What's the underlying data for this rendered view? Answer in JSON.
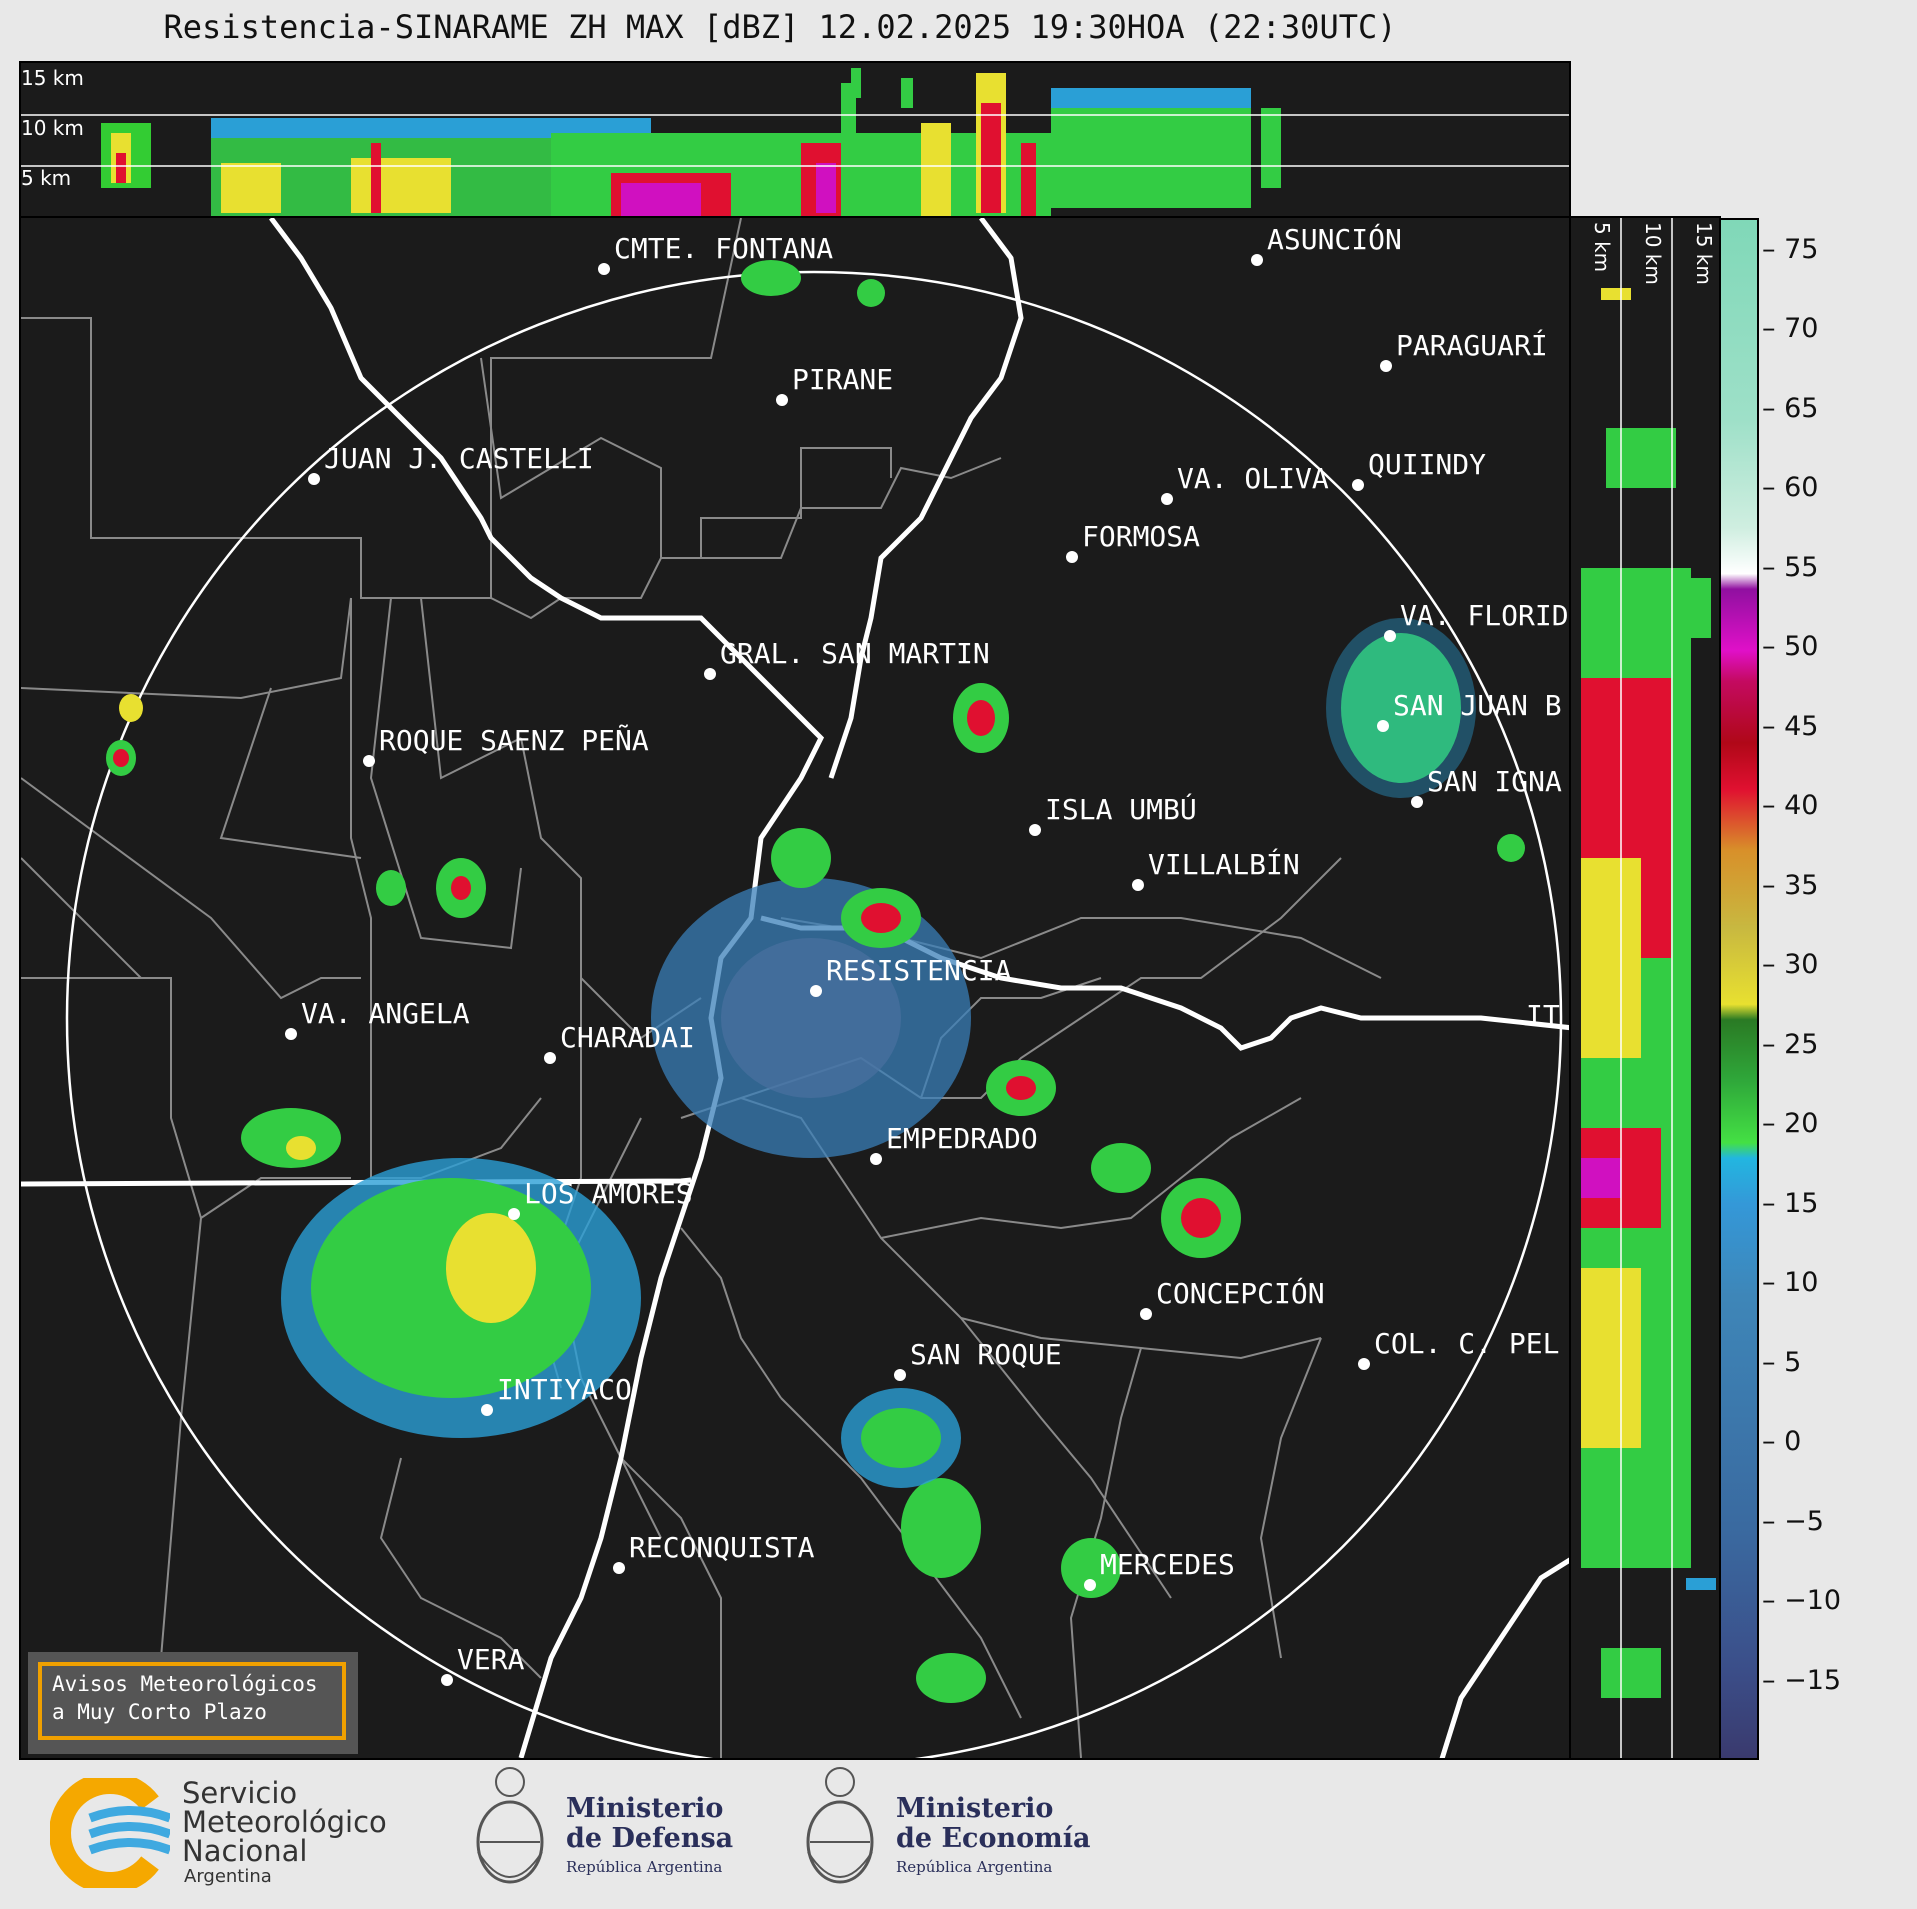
{
  "title": "Resistencia-SINARAME ZH MAX [dBZ] 12.02.2025 19:30HOA (22:30UTC)",
  "heights": {
    "h15": "15 km",
    "h10": "10 km",
    "h5": "5 km"
  },
  "cities": [
    {
      "name": "CMTE. FONTANA"
    },
    {
      "name": "ASUNCIÓN"
    },
    {
      "name": "PARAGUARÍ"
    },
    {
      "name": "PIRANE"
    },
    {
      "name": "JUAN J. CASTELLI"
    },
    {
      "name": "VA. OLIVA"
    },
    {
      "name": "QUIINDY"
    },
    {
      "name": "FORMOSA"
    },
    {
      "name": "VA. FLORIDA"
    },
    {
      "name": "GRAL. SAN MARTIN"
    },
    {
      "name": "SAN JUAN B"
    },
    {
      "name": "ROQUE SAENZ PEÑA"
    },
    {
      "name": "SAN IGNA"
    },
    {
      "name": "ISLA UMBÚ"
    },
    {
      "name": "VILLALBÍN"
    },
    {
      "name": "RESISTENCIA"
    },
    {
      "name": "VA. ANGELA"
    },
    {
      "name": "CHARADAI"
    },
    {
      "name": "IT"
    },
    {
      "name": "EMPEDRADO"
    },
    {
      "name": "LOS AMORES"
    },
    {
      "name": "CONCEPCIÓN"
    },
    {
      "name": "SAN ROQUE"
    },
    {
      "name": "COL. C. PEL"
    },
    {
      "name": "INTIYACO"
    },
    {
      "name": "RECONQUISTA"
    },
    {
      "name": "MERCEDES"
    },
    {
      "name": "VERA"
    }
  ],
  "colorbar": {
    "ticks": [
      "75",
      "70",
      "65",
      "60",
      "55",
      "50",
      "45",
      "40",
      "35",
      "30",
      "25",
      "20",
      "15",
      "10",
      "5",
      "0",
      "−5",
      "−10",
      "−15"
    ],
    "range_dbz": [
      -20,
      77
    ]
  },
  "avisos": {
    "line1": "Avisos Meteorológicos",
    "line2": "a Muy Corto Plazo"
  },
  "logos": {
    "smn_line1": "Servicio",
    "smn_line2": "Meteorológico",
    "smn_line3": "Nacional",
    "smn_line4": "Argentina",
    "defensa_line1": "Ministerio",
    "defensa_line2": "de Defensa",
    "defensa_line3": "República Argentina",
    "economia_line1": "Ministerio",
    "economia_line2": "de Economía",
    "economia_line3": "República Argentina"
  }
}
